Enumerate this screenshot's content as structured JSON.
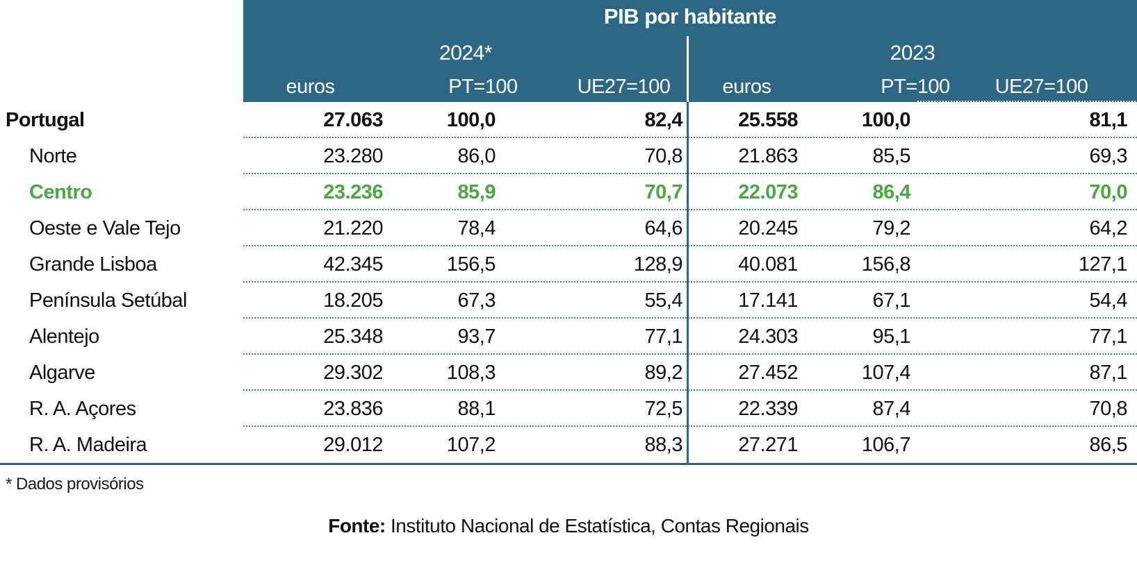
{
  "table": {
    "title": "PIB por habitante",
    "groups": [
      {
        "year": "2024*",
        "columns": [
          "euros",
          "PT=100",
          "UE27=100"
        ]
      },
      {
        "year": "2023",
        "columns": [
          "euros",
          "PT=100",
          "UE27=100"
        ]
      }
    ],
    "rows": [
      {
        "label": "Portugal",
        "values": [
          "27.063",
          "100,0",
          "82,4",
          "25.558",
          "100,0",
          "81,1"
        ]
      },
      {
        "label": "Norte",
        "values": [
          "23.280",
          "86,0",
          "70,8",
          "21.863",
          "85,5",
          "69,3"
        ]
      },
      {
        "label": "Centro",
        "values": [
          "23.236",
          "85,9",
          "70,7",
          "22.073",
          "86,4",
          "70,0"
        ]
      },
      {
        "label": "Oeste e Vale Tejo",
        "values": [
          "21.220",
          "78,4",
          "64,6",
          "20.245",
          "79,2",
          "64,2"
        ]
      },
      {
        "label": "Grande Lisboa",
        "values": [
          "42.345",
          "156,5",
          "128,9",
          "40.081",
          "156,8",
          "127,1"
        ]
      },
      {
        "label": "Península Setúbal",
        "values": [
          "18.205",
          "67,3",
          "55,4",
          "17.141",
          "67,1",
          "54,4"
        ]
      },
      {
        "label": "Alentejo",
        "values": [
          "25.348",
          "93,7",
          "77,1",
          "24.303",
          "95,1",
          "77,1"
        ]
      },
      {
        "label": "Algarve",
        "values": [
          "29.302",
          "108,3",
          "89,2",
          "27.452",
          "107,4",
          "87,1"
        ]
      },
      {
        "label": "R. A. Açores",
        "values": [
          "23.836",
          "88,1",
          "72,5",
          "22.339",
          "87,4",
          "70,8"
        ]
      },
      {
        "label": "R. A. Madeira",
        "values": [
          "29.012",
          "107,2",
          "88,3",
          "27.271",
          "106,7",
          "86,5"
        ]
      }
    ],
    "footnote": "* Dados provisórios",
    "source_label": "Fonte:",
    "source_text": "Instituto Nacional de Estatística, Contas Regionais"
  },
  "colors": {
    "header_background": "#2D6785",
    "highlight_green": "#4CA646",
    "bottom_rule": "#2A5F7B",
    "text": "#111111",
    "header_text": "#FFFFFF"
  },
  "chart_data": {
    "type": "table",
    "title": "PIB por habitante",
    "column_groups": [
      "2024*",
      "2023"
    ],
    "columns": [
      "2024* euros",
      "2024* PT=100",
      "2024* UE27=100",
      "2023 euros",
      "2023 PT=100",
      "2023 UE27=100"
    ],
    "row_labels": [
      "Portugal",
      "Norte",
      "Centro",
      "Oeste e Vale Tejo",
      "Grande Lisboa",
      "Península Setúbal",
      "Alentejo",
      "Algarve",
      "R. A. Açores",
      "R. A. Madeira"
    ],
    "values": [
      [
        27063,
        100.0,
        82.4,
        25558,
        100.0,
        81.1
      ],
      [
        23280,
        86.0,
        70.8,
        21863,
        85.5,
        69.3
      ],
      [
        23236,
        85.9,
        70.7,
        22073,
        86.4,
        70.0
      ],
      [
        21220,
        78.4,
        64.6,
        20245,
        79.2,
        64.2
      ],
      [
        42345,
        156.5,
        128.9,
        40081,
        156.8,
        127.1
      ],
      [
        18205,
        67.3,
        55.4,
        17141,
        67.1,
        54.4
      ],
      [
        25348,
        93.7,
        77.1,
        24303,
        95.1,
        77.1
      ],
      [
        29302,
        108.3,
        89.2,
        27452,
        107.4,
        87.1
      ],
      [
        23836,
        88.1,
        72.5,
        22339,
        87.4,
        70.8
      ],
      [
        29012,
        107.2,
        88.3,
        27271,
        106.7,
        86.5
      ]
    ],
    "highlighted_row": "Centro",
    "bold_rows": [
      "Portugal",
      "Centro"
    ],
    "footnote": "* Dados provisórios",
    "source": "Fonte: Instituto Nacional de Estatística, Contas Regionais"
  }
}
